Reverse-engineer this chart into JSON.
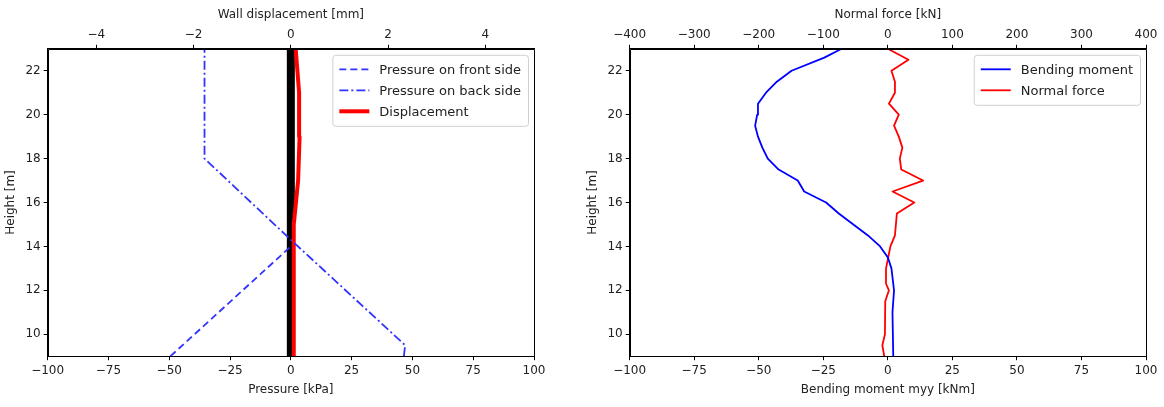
{
  "chart_data": [
    {
      "type": "line",
      "xlabel": "Pressure [kPa]",
      "x2label": "Wall displacement [mm]",
      "ylabel": "Height [m]",
      "xlim": [
        -100,
        100
      ],
      "xticks": [
        {
          "value": -100,
          "label": "−100"
        },
        {
          "value": -75,
          "label": "−75"
        },
        {
          "value": -50,
          "label": "−50"
        },
        {
          "value": -25,
          "label": "−25"
        },
        0,
        25,
        50,
        75,
        100
      ],
      "x2lim": [
        -5,
        5
      ],
      "x2ticks": [
        {
          "value": -4,
          "label": "−4"
        },
        {
          "value": -2,
          "label": "−2"
        },
        0,
        2,
        4
      ],
      "ylim": [
        9,
        23
      ],
      "yticks": [
        10,
        12,
        14,
        16,
        18,
        20,
        22
      ],
      "grid": false,
      "legend": "top right",
      "marker": "none",
      "series": [
        {
          "name": "Pressure on front side",
          "color": "#3333ff",
          "line_style": "dashed",
          "x": [
            -49.5,
            0
          ],
          "values": [
            9,
            14
          ]
        },
        {
          "name": "Pressure on back side",
          "color": "#3333ff",
          "line_style": "dashdot",
          "x": [
            46.5,
            47,
            0,
            -35.5,
            -35.5
          ],
          "values": [
            9,
            9.5,
            14.3,
            18,
            23
          ]
        },
        {
          "name": "Displacement",
          "color": "#ff0000",
          "line_style": "solid",
          "axis": "x2",
          "x": [
            0.05,
            0.06,
            0.15,
            0.18,
            0.17,
            0.1
          ],
          "values": [
            9,
            15,
            17,
            19,
            21,
            23
          ]
        }
      ],
      "ref_lines": [
        {
          "axis": "x",
          "value": 0,
          "color": "#000000",
          "line_style": "solid"
        }
      ]
    },
    {
      "type": "line",
      "xlabel": "Bending moment myy [kNm]",
      "x2label": "Normal force [kN]",
      "ylabel": "Height [m]",
      "xlim": [
        -100,
        100
      ],
      "xticks": [
        {
          "value": -100,
          "label": "−100"
        },
        {
          "value": -75,
          "label": "−75"
        },
        {
          "value": -50,
          "label": "−50"
        },
        {
          "value": -25,
          "label": "−25"
        },
        0,
        25,
        50,
        75,
        100
      ],
      "x2lim": [
        -400,
        400
      ],
      "x2ticks": [
        {
          "value": -400,
          "label": "−400"
        },
        {
          "value": -300,
          "label": "−300"
        },
        {
          "value": -200,
          "label": "−200"
        },
        {
          "value": -100,
          "label": "−100"
        },
        0,
        100,
        200,
        300,
        400
      ],
      "ylim": [
        9,
        23
      ],
      "yticks": [
        10,
        12,
        14,
        16,
        18,
        20,
        22
      ],
      "grid": false,
      "legend": "top right",
      "marker": "none",
      "series": [
        {
          "name": "Bending moment",
          "color": "#0000ff",
          "line_style": "solid",
          "x": [
            2.1,
            1.8,
            2.4,
            1.4,
            0,
            -3,
            -7.7,
            -19,
            -23.9,
            -32.4,
            -34.9,
            -42.3,
            -46.5,
            -48.6,
            -50.3,
            -51.4,
            -50.6,
            -50.3,
            -47.2,
            -43,
            -37.3,
            -24.6,
            -17.9
          ],
          "values": [
            9,
            11,
            12,
            13,
            13.5,
            14,
            14.5,
            15.5,
            16,
            16.5,
            17,
            17.5,
            18,
            18.5,
            19,
            19.5,
            20,
            20.5,
            21,
            21.5,
            22,
            22.6,
            23
          ]
        },
        {
          "name": "Normal force",
          "color": "#ff0000",
          "line_style": "solid",
          "axis": "x2",
          "x": [
            -5.6,
            -8.5,
            -4.5,
            -4,
            1.7,
            -2.8,
            -2.8,
            4,
            11,
            14,
            41,
            7.3,
            54.6,
            20.8,
            18.6,
            22.5,
            17,
            9.6,
            17,
            1.7,
            11,
            11,
            5.6,
            32,
            0
          ],
          "values": [
            9,
            9.5,
            10,
            11.5,
            12,
            12.3,
            13,
            14,
            14.5,
            15.5,
            16,
            16.5,
            17,
            17.5,
            18,
            18.5,
            19,
            19.5,
            20,
            20.5,
            21,
            21.5,
            22,
            22.5,
            23
          ]
        }
      ]
    }
  ]
}
